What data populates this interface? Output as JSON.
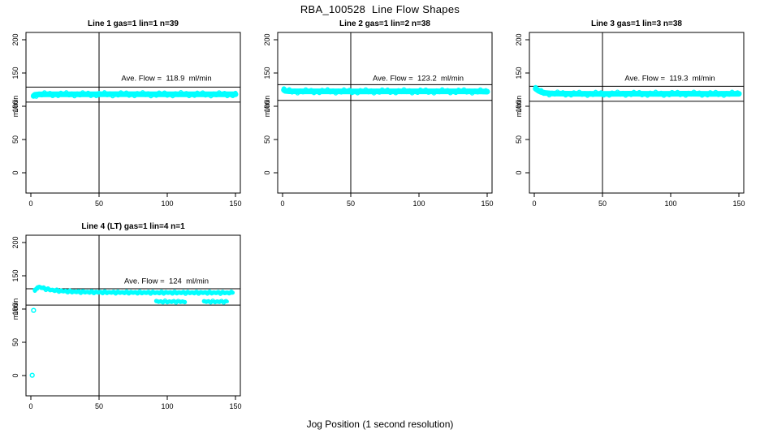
{
  "page": {
    "title": "RBA_100528  Line Flow Shapes",
    "xlabel": "Jog Position (1 second resolution)"
  },
  "colors": {
    "points": "#00ffff",
    "axis": "#000000",
    "background": "#ffffff"
  },
  "chart_data": [
    {
      "type": "scatter",
      "title": "Line 1 gas=1 lin=1 n=39",
      "annotation": "Ave. Flow =  118.9  ml/min",
      "ave_flow": 118.9,
      "ylabel": "ml/min",
      "xlim": [
        0,
        155
      ],
      "ylim": [
        0,
        210
      ],
      "xticks": [
        0,
        50,
        100,
        150
      ],
      "yticks": [
        0,
        50,
        100,
        150,
        200
      ],
      "vline_x": 50,
      "hlines": [
        128.8,
        106.3
      ],
      "grid": false,
      "segments": [
        {
          "centers": [
            [
              2,
              115.5
            ],
            [
              3,
              117.2
            ],
            [
              6,
              117.8
            ],
            [
              12,
              118
            ],
            [
              30,
              118.1
            ],
            [
              50,
              118
            ],
            [
              70,
              118.2
            ],
            [
              90,
              118
            ],
            [
              110,
              118.1
            ],
            [
              130,
              118
            ],
            [
              150,
              117.9
            ]
          ],
          "half_width": 2.4,
          "circle_step": 2,
          "line_width": 7
        }
      ],
      "outliers": []
    },
    {
      "type": "scatter",
      "title": "Line 2 gas=1 lin=2 n=38",
      "annotation": "Ave. Flow =  123.2  ml/min",
      "ave_flow": 123.2,
      "ylabel": "ml/min",
      "xlim": [
        0,
        155
      ],
      "ylim": [
        0,
        210
      ],
      "xticks": [
        0,
        50,
        100,
        150
      ],
      "yticks": [
        0,
        50,
        100,
        150,
        200
      ],
      "vline_x": 50,
      "hlines": [
        132.5,
        108.8
      ],
      "grid": false,
      "segments": [
        {
          "centers": [
            [
              1,
              124.5
            ],
            [
              2,
              123.2
            ],
            [
              5,
              122.6
            ],
            [
              15,
              122.4
            ],
            [
              35,
              122.5
            ],
            [
              55,
              122.3
            ],
            [
              75,
              122.5
            ],
            [
              95,
              122.4
            ],
            [
              115,
              122.4
            ],
            [
              135,
              122.5
            ],
            [
              146,
              122.2
            ],
            [
              150,
              121.9
            ]
          ],
          "half_width": 2.4,
          "circle_step": 2,
          "line_width": 7
        }
      ],
      "outliers": []
    },
    {
      "type": "scatter",
      "title": "Line 3 gas=1 lin=3 n=38",
      "annotation": "Ave. Flow =  119.3  ml/min",
      "ave_flow": 119.3,
      "ylabel": "ml/min",
      "xlim": [
        0,
        155
      ],
      "ylim": [
        0,
        210
      ],
      "xticks": [
        0,
        50,
        100,
        150
      ],
      "yticks": [
        0,
        50,
        100,
        150,
        200
      ],
      "vline_x": 50,
      "hlines": [
        130.0,
        107.5
      ],
      "grid": false,
      "segments": [
        {
          "centers": [
            [
              1,
              126.5
            ],
            [
              3,
              123.5
            ],
            [
              5,
              121.5
            ],
            [
              8,
              120
            ],
            [
              12,
              119.3
            ],
            [
              18,
              119
            ],
            [
              30,
              118.8
            ],
            [
              50,
              118.7
            ],
            [
              70,
              118.9
            ],
            [
              90,
              118.7
            ],
            [
              110,
              118.9
            ],
            [
              130,
              118.7
            ],
            [
              150,
              118.8
            ]
          ],
          "half_width": 2.4,
          "circle_step": 2,
          "line_width": 7
        }
      ],
      "outliers": []
    },
    {
      "type": "scatter",
      "title": "Line 4 (LT) gas=1 lin=4 n=1",
      "annotation": "Ave. Flow =  124  ml/min",
      "ave_flow": 124,
      "ylabel": "ml/min",
      "xlim": [
        0,
        155
      ],
      "ylim": [
        0,
        210
      ],
      "xticks": [
        0,
        50,
        100,
        150
      ],
      "yticks": [
        0,
        50,
        100,
        150,
        200
      ],
      "vline_x": 50,
      "hlines": [
        130.5,
        106.0
      ],
      "grid": false,
      "segments": [
        {
          "centers": [
            [
              3,
              127.5
            ],
            [
              4,
              130.5
            ],
            [
              5,
              132.8
            ],
            [
              6,
              133
            ],
            [
              7,
              132.6
            ],
            [
              9,
              131.5
            ],
            [
              11,
              130.3
            ],
            [
              14,
              129
            ],
            [
              18,
              128
            ],
            [
              22,
              127.2
            ],
            [
              27,
              126.5
            ],
            [
              33,
              126
            ],
            [
              40,
              125.6
            ],
            [
              50,
              125.2
            ],
            [
              60,
              125
            ],
            [
              70,
              124.9
            ],
            [
              80,
              124.8
            ],
            [
              90,
              124.7
            ],
            [
              100,
              124.7
            ],
            [
              110,
              124.6
            ],
            [
              120,
              124.6
            ],
            [
              130,
              124.6
            ],
            [
              140,
              124.5
            ],
            [
              148,
              124.5
            ]
          ],
          "half_width": 1.2,
          "circle_step": 1.6,
          "line_width": 5
        },
        {
          "centers": [
            [
              92,
              111.5
            ],
            [
              95,
              111
            ],
            [
              98,
              111.3
            ],
            [
              101,
              111
            ],
            [
              104,
              111.2
            ],
            [
              107,
              111
            ],
            [
              110,
              111.2
            ],
            [
              113,
              111
            ]
          ],
          "half_width": 1.0,
          "circle_step": 1.6,
          "line_width": 4
        },
        {
          "centers": [
            [
              127,
              111.3
            ],
            [
              130,
              111
            ],
            [
              133,
              111.3
            ],
            [
              136,
              111
            ],
            [
              139,
              111.2
            ],
            [
              142,
              111
            ],
            [
              144,
              111.2
            ]
          ],
          "half_width": 1.0,
          "circle_step": 1.6,
          "line_width": 4
        }
      ],
      "outliers": [
        [
          1,
          0.5
        ],
        [
          2,
          98
        ]
      ]
    }
  ]
}
